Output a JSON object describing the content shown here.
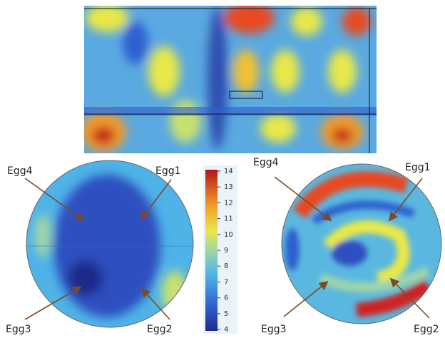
{
  "colorbar": {
    "lim": [
      4,
      14
    ],
    "ticks": [
      14,
      13,
      12,
      11,
      10,
      9,
      8,
      7,
      6,
      5,
      4
    ]
  },
  "left_disk": {
    "labels": [
      "Egg4",
      "Egg1",
      "Egg3",
      "Egg2"
    ]
  },
  "right_disk": {
    "labels": [
      "Egg4",
      "Egg1",
      "Egg3",
      "Egg2"
    ]
  }
}
